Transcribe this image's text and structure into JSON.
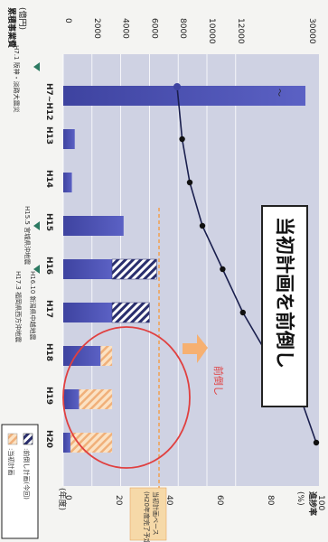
{
  "chart_data": {
    "type": "bar",
    "orientation": "rotated-90-clockwise",
    "title": "当初計画を前倒し",
    "ylabel_left": "累積事業費",
    "ylabel_left_unit": "(億円)",
    "ylabel_right": "進捗率",
    "ylabel_right_unit": "(%)",
    "xlabel_unit": "(年度)",
    "ylim_left": [
      0,
      30000
    ],
    "ylim_right": [
      0,
      100
    ],
    "left_ticks": [
      "0",
      "2000",
      "4000",
      "6000",
      "8000",
      "10000",
      "12000",
      "30000"
    ],
    "right_ticks": [
      "0",
      "20",
      "40",
      "60",
      "80",
      "100"
    ],
    "categories": [
      "H7~H12",
      "H13",
      "H14",
      "H15",
      "H16",
      "H17",
      "H18",
      "H19",
      "H20"
    ],
    "series": [
      {
        "name": "当初計画",
        "values": [
          30000,
          800,
          600,
          4200,
          3400,
          3400,
          3400,
          3400,
          3400
        ]
      },
      {
        "name": "前倒し計画(今回)",
        "values": [
          30000,
          800,
          600,
          4200,
          6500,
          6000,
          2600,
          1100,
          500
        ]
      }
    ],
    "progress_line": {
      "name": "進捗率",
      "values": [
        45,
        47,
        50,
        55,
        63,
        71,
        81,
        94,
        100
      ]
    },
    "events": [
      {
        "label": "H7.1 阪神・淡路大震災"
      },
      {
        "label": "H16.10 新潟県中越地震"
      },
      {
        "label": "H17.3 福岡県西方沖地震"
      },
      {
        "label": "H15.5 宮城県沖地震"
      }
    ],
    "reference_line_label": "当初計画ベース\n(H20年度完了予定)",
    "annotation": "前倒し",
    "legend": [
      {
        "label": ":前倒し計画(今回)",
        "swatch": "hatched"
      },
      {
        "label": ":当初計画",
        "swatch": "peach-hatched"
      }
    ]
  }
}
